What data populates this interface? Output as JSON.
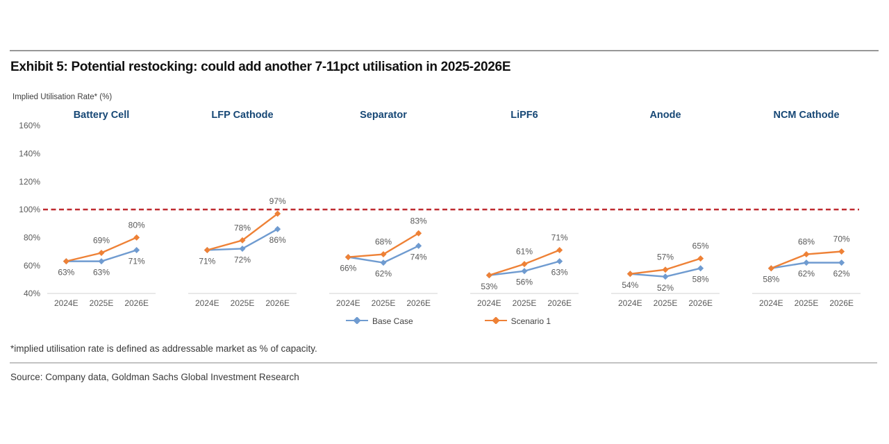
{
  "header": {
    "title": "Exhibit 5: Potential restocking: could add another 7-11pct utilisation in 2025-2026E"
  },
  "chart_data": {
    "type": "line",
    "axis_label": "Implied Utilisation Rate* (%)",
    "categories": [
      "2024E",
      "2025E",
      "2026E"
    ],
    "y_axis": {
      "ticks": [
        160,
        140,
        120,
        100,
        80,
        60,
        40
      ],
      "tick_suffix": "%",
      "min": 40,
      "max": 170,
      "grid": false
    },
    "reference_line": {
      "value": 100,
      "color": "#bf2b30",
      "style": "dashed"
    },
    "marker": "diamond",
    "legend_position": "bottom",
    "panels": [
      {
        "title": "Battery Cell",
        "series": [
          {
            "name": "Base Case",
            "values": [
              63,
              63,
              71
            ]
          },
          {
            "name": "Scenario 1",
            "values": [
              63,
              69,
              80
            ]
          }
        ]
      },
      {
        "title": "LFP Cathode",
        "series": [
          {
            "name": "Base Case",
            "values": [
              71,
              72,
              86
            ]
          },
          {
            "name": "Scenario 1",
            "values": [
              71,
              78,
              97
            ]
          }
        ]
      },
      {
        "title": "Separator",
        "series": [
          {
            "name": "Base Case",
            "values": [
              66,
              62,
              74
            ]
          },
          {
            "name": "Scenario 1",
            "values": [
              66,
              68,
              83
            ]
          }
        ]
      },
      {
        "title": "LiPF6",
        "series": [
          {
            "name": "Base Case",
            "values": [
              53,
              56,
              63
            ]
          },
          {
            "name": "Scenario 1",
            "values": [
              53,
              61,
              71
            ]
          }
        ]
      },
      {
        "title": "Anode",
        "series": [
          {
            "name": "Base Case",
            "values": [
              54,
              52,
              58
            ]
          },
          {
            "name": "Scenario 1",
            "values": [
              54,
              57,
              65
            ]
          }
        ]
      },
      {
        "title": "NCM Cathode",
        "series": [
          {
            "name": "Base Case",
            "values": [
              58,
              62,
              62
            ]
          },
          {
            "name": "Scenario 1",
            "values": [
              58,
              68,
              70
            ]
          }
        ]
      }
    ],
    "legend": [
      {
        "label": "Base Case",
        "color": "#6f9bd0"
      },
      {
        "label": "Scenario 1",
        "color": "#ee8136"
      }
    ],
    "colors": {
      "base_case": "#6f9bd0",
      "scenario_1": "#ee8136",
      "panel_title": "#164775",
      "tick_text": "#595959",
      "data_label": "#595959",
      "baseline": "#d9d9d9"
    }
  },
  "footnote": "*implied utilisation rate is defined as addressable market as % of capacity.",
  "source": "Source: Company data, Goldman Sachs Global Investment Research"
}
